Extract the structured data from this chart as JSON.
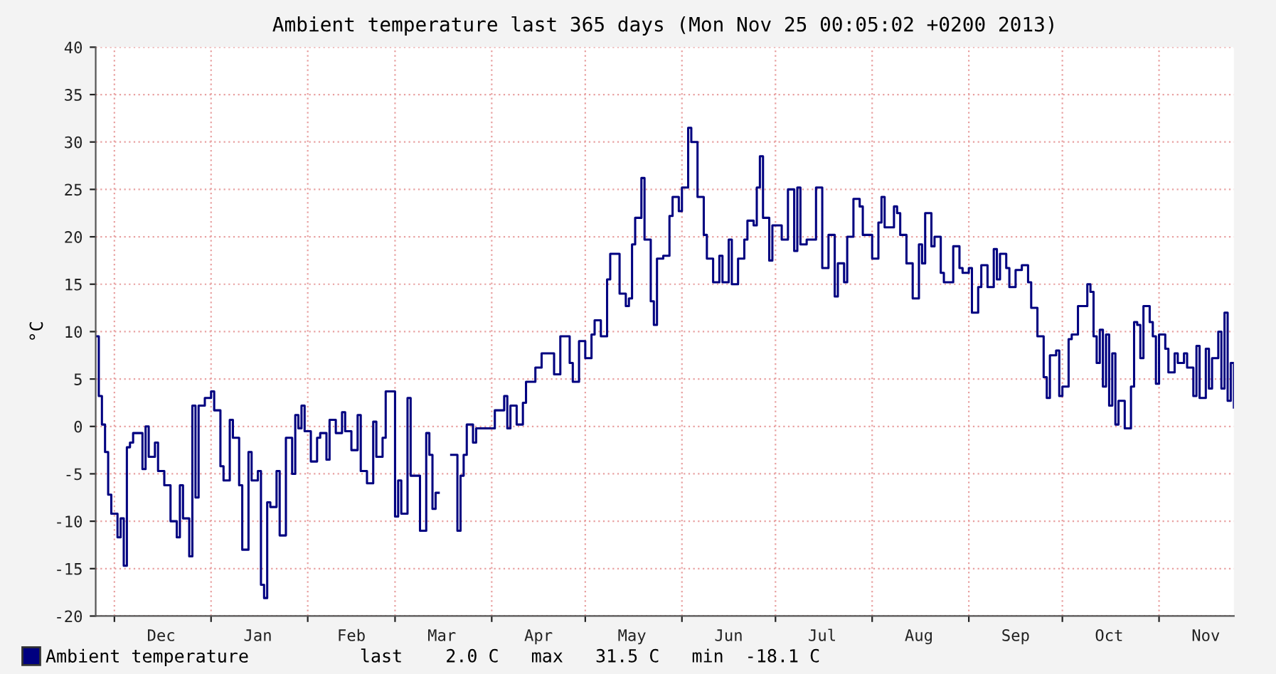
{
  "chart_data": {
    "type": "step",
    "title": "Ambient temperature last 365 days (Mon Nov 25 00:05:02 +0200 2013)",
    "ylabel": "°C",
    "x": [
      "2012-11-25T00:05",
      "2012-11-26",
      "2012-11-27",
      "2012-11-28",
      "2012-11-29",
      "2012-11-30",
      "2012-12-02",
      "2012-12-03",
      "2012-12-04",
      "2012-12-05",
      "2012-12-06",
      "2012-12-07",
      "2012-12-10",
      "2012-12-11",
      "2012-12-12",
      "2012-12-14",
      "2012-12-15",
      "2012-12-17",
      "2012-12-19",
      "2012-12-21",
      "2012-12-22",
      "2012-12-23",
      "2012-12-25",
      "2012-12-26",
      "2012-12-27",
      "2012-12-28",
      "2012-12-30",
      "2013-01-01",
      "2013-01-02",
      "2013-01-04",
      "2013-01-05",
      "2013-01-07",
      "2013-01-08",
      "2013-01-10",
      "2013-01-11",
      "2013-01-13",
      "2013-01-14",
      "2013-01-16",
      "2013-01-17",
      "2013-01-18",
      "2013-01-19",
      "2013-01-20",
      "2013-01-22",
      "2013-01-23",
      "2013-01-25",
      "2013-01-27",
      "2013-01-28",
      "2013-01-29",
      "2013-01-30",
      "2013-01-31",
      "2013-02-02",
      "2013-02-04",
      "2013-02-05",
      "2013-02-07",
      "2013-02-08",
      "2013-02-10",
      "2013-02-12",
      "2013-02-13",
      "2013-02-15",
      "2013-02-17",
      "2013-02-18",
      "2013-02-20",
      "2013-02-22",
      "2013-02-23",
      "2013-02-25",
      "2013-02-26",
      "2013-03-01",
      "2013-03-02",
      "2013-03-03",
      "2013-03-05",
      "2013-03-06",
      "2013-03-09",
      "2013-03-11",
      "2013-03-12",
      "2013-03-13",
      "2013-03-14",
      "2013-03-15",
      "2013-03-19",
      "2013-03-21",
      "2013-03-22",
      "2013-03-23",
      "2013-03-24",
      "2013-03-26",
      "2013-03-27",
      "2013-04-02",
      "2013-04-05",
      "2013-04-06",
      "2013-04-07",
      "2013-04-09",
      "2013-04-11",
      "2013-04-12",
      "2013-04-15",
      "2013-04-17",
      "2013-04-21",
      "2013-04-23",
      "2013-04-26",
      "2013-04-27",
      "2013-04-29",
      "2013-05-01",
      "2013-05-03",
      "2013-05-04",
      "2013-05-06",
      "2013-05-08",
      "2013-05-09",
      "2013-05-12",
      "2013-05-14",
      "2013-05-15",
      "2013-05-16",
      "2013-05-17",
      "2013-05-19",
      "2013-05-20",
      "2013-05-22",
      "2013-05-23",
      "2013-05-24",
      "2013-05-26",
      "2013-05-28",
      "2013-05-29",
      "2013-05-31",
      "2013-06-01",
      "2013-06-03",
      "2013-06-04",
      "2013-06-05",
      "2013-06-06",
      "2013-06-08",
      "2013-06-09",
      "2013-06-11",
      "2013-06-13",
      "2013-06-14",
      "2013-06-16",
      "2013-06-17",
      "2013-06-19",
      "2013-06-21",
      "2013-06-22",
      "2013-06-24",
      "2013-06-25",
      "2013-06-26",
      "2013-06-27",
      "2013-06-29",
      "2013-06-30",
      "2013-07-03",
      "2013-07-05",
      "2013-07-07",
      "2013-07-08",
      "2013-07-09",
      "2013-07-11",
      "2013-07-14",
      "2013-07-16",
      "2013-07-18",
      "2013-07-20",
      "2013-07-21",
      "2013-07-23",
      "2013-07-24",
      "2013-07-26",
      "2013-07-28",
      "2013-07-29",
      "2013-08-01",
      "2013-08-03",
      "2013-08-04",
      "2013-08-05",
      "2013-08-08",
      "2013-08-09",
      "2013-08-10",
      "2013-08-12",
      "2013-08-14",
      "2013-08-16",
      "2013-08-17",
      "2013-08-18",
      "2013-08-20",
      "2013-08-21",
      "2013-08-23",
      "2013-08-24",
      "2013-08-27",
      "2013-08-29",
      "2013-08-30",
      "2013-09-01",
      "2013-09-02",
      "2013-09-04",
      "2013-09-05",
      "2013-09-07",
      "2013-09-09",
      "2013-09-10",
      "2013-09-11",
      "2013-09-13",
      "2013-09-14",
      "2013-09-16",
      "2013-09-18",
      "2013-09-20",
      "2013-09-21",
      "2013-09-23",
      "2013-09-25",
      "2013-09-26",
      "2013-09-27",
      "2013-09-29",
      "2013-09-30",
      "2013-10-01",
      "2013-10-03",
      "2013-10-04",
      "2013-10-06",
      "2013-10-09",
      "2013-10-10",
      "2013-10-11",
      "2013-10-12",
      "2013-10-13",
      "2013-10-14",
      "2013-10-15",
      "2013-10-16",
      "2013-10-17",
      "2013-10-18",
      "2013-10-19",
      "2013-10-21",
      "2013-10-23",
      "2013-10-24",
      "2013-10-25",
      "2013-10-26",
      "2013-10-27",
      "2013-10-29",
      "2013-10-30",
      "2013-10-31",
      "2013-11-01",
      "2013-11-03",
      "2013-11-04",
      "2013-11-06",
      "2013-11-07",
      "2013-11-09",
      "2013-11-10",
      "2013-11-12",
      "2013-11-13",
      "2013-11-14",
      "2013-11-16",
      "2013-11-17",
      "2013-11-18",
      "2013-11-20",
      "2013-11-21",
      "2013-11-22",
      "2013-11-23",
      "2013-11-24",
      "2013-11-25"
    ],
    "series": [
      {
        "name": "Ambient temperature",
        "color": "#000080",
        "values": [
          9.5,
          3.2,
          0.2,
          -2.7,
          -7.2,
          -9.2,
          -11.7,
          -9.7,
          -14.7,
          -2.2,
          -1.7,
          -0.7,
          -4.5,
          0,
          -3.2,
          -1.7,
          -4.7,
          -6.2,
          -10,
          -11.7,
          -6.2,
          -9.7,
          -13.7,
          2.2,
          -7.5,
          2.2,
          3,
          3.7,
          1.7,
          -4.2,
          -5.7,
          0.7,
          -1.2,
          -6.2,
          -13,
          -2.7,
          -5.7,
          -4.7,
          -16.7,
          -18.1,
          -8,
          -8.5,
          -4.7,
          -11.5,
          -1.2,
          -5,
          1.2,
          -0.2,
          2.2,
          -0.5,
          -3.7,
          -1.2,
          -0.7,
          -3.5,
          0.7,
          -0.7,
          1.5,
          -0.5,
          -2.5,
          1.2,
          -4.7,
          -6,
          0.5,
          -3.2,
          -1.2,
          3.7,
          -9.5,
          -5.7,
          -9.2,
          3,
          -5.2,
          -11,
          -0.7,
          -3,
          -8.7,
          -7,
          null,
          -3,
          -11,
          -5.2,
          -3,
          0.2,
          -1.7,
          -0.2,
          1.7,
          3.2,
          -0.2,
          2.2,
          0.2,
          2.5,
          4.7,
          6.2,
          7.7,
          5.5,
          9.5,
          6.7,
          4.7,
          9,
          7.2,
          9.7,
          11.2,
          9.5,
          15.5,
          18.2,
          14,
          12.7,
          13.5,
          19.2,
          22,
          26.2,
          19.7,
          13.2,
          10.7,
          17.7,
          18,
          22.2,
          24.2,
          22.7,
          25.2,
          31.5,
          30,
          30,
          24.2,
          20.2,
          17.7,
          15.2,
          18,
          15.2,
          19.7,
          15,
          17.7,
          19.7,
          21.7,
          21.2,
          25.2,
          28.5,
          22,
          17.5,
          21.2,
          19.7,
          25,
          18.5,
          25.2,
          19.2,
          19.7,
          25.2,
          16.7,
          20.2,
          13.7,
          17.2,
          15.2,
          20,
          24,
          23.2,
          20.2,
          17.7,
          21.5,
          24.2,
          21,
          23.2,
          22.5,
          20.2,
          17.2,
          13.5,
          19.2,
          17.2,
          22.5,
          19,
          20,
          16.2,
          15.2,
          19,
          16.7,
          16.2,
          16.7,
          12,
          14.7,
          17,
          14.7,
          18.7,
          15.5,
          18.2,
          16.7,
          14.7,
          16.5,
          17,
          15.2,
          12.5,
          9.5,
          5.2,
          3,
          7.5,
          8,
          3.2,
          4.2,
          9.2,
          9.7,
          12.7,
          15,
          14.2,
          9.5,
          6.7,
          10.2,
          4.2,
          9.7,
          2.2,
          7.7,
          0.2,
          2.7,
          -0.2,
          4.2,
          11,
          10.7,
          7.2,
          12.7,
          11,
          9.5,
          4.5,
          9.7,
          8.2,
          5.7,
          7.7,
          6.7,
          7.7,
          6.2,
          3.2,
          8.5,
          3,
          8.2,
          4,
          7.2,
          10,
          4,
          12,
          2.7,
          6.7,
          2.0
        ]
      }
    ],
    "xlim": [
      "2012-11-25T00:05",
      "2013-11-25T00:05"
    ],
    "xticks": [
      {
        "value": "2012-12-01",
        "label": null
      },
      {
        "value": "2012-12-16",
        "label": "Dec"
      },
      {
        "value": "2013-01-01",
        "label": null
      },
      {
        "value": "2013-01-16",
        "label": "Jan"
      },
      {
        "value": "2013-02-01",
        "label": null
      },
      {
        "value": "2013-02-15",
        "label": "Feb"
      },
      {
        "value": "2013-03-01",
        "label": null
      },
      {
        "value": "2013-03-16",
        "label": "Mar"
      },
      {
        "value": "2013-04-01",
        "label": null
      },
      {
        "value": "2013-04-16",
        "label": "Apr"
      },
      {
        "value": "2013-05-01",
        "label": null
      },
      {
        "value": "2013-05-16",
        "label": "May"
      },
      {
        "value": "2013-06-01",
        "label": null
      },
      {
        "value": "2013-06-16",
        "label": "Jun"
      },
      {
        "value": "2013-07-01",
        "label": null
      },
      {
        "value": "2013-07-16",
        "label": "Jul"
      },
      {
        "value": "2013-08-01",
        "label": null
      },
      {
        "value": "2013-08-16",
        "label": "Aug"
      },
      {
        "value": "2013-09-01",
        "label": null
      },
      {
        "value": "2013-09-16",
        "label": "Sep"
      },
      {
        "value": "2013-10-01",
        "label": null
      },
      {
        "value": "2013-10-16",
        "label": "Oct"
      },
      {
        "value": "2013-11-01",
        "label": null
      },
      {
        "value": "2013-11-16",
        "label": "Nov"
      }
    ],
    "ylim": [
      -20,
      40
    ],
    "yticks": [
      -20,
      -15,
      -10,
      -5,
      0,
      5,
      10,
      15,
      20,
      25,
      30,
      35,
      40
    ],
    "grid": true,
    "legend": "bottom left",
    "line_style": "solid",
    "annotations": [
      "last    2.0 C   max   31.5 C   min  -18.1 C"
    ]
  }
}
